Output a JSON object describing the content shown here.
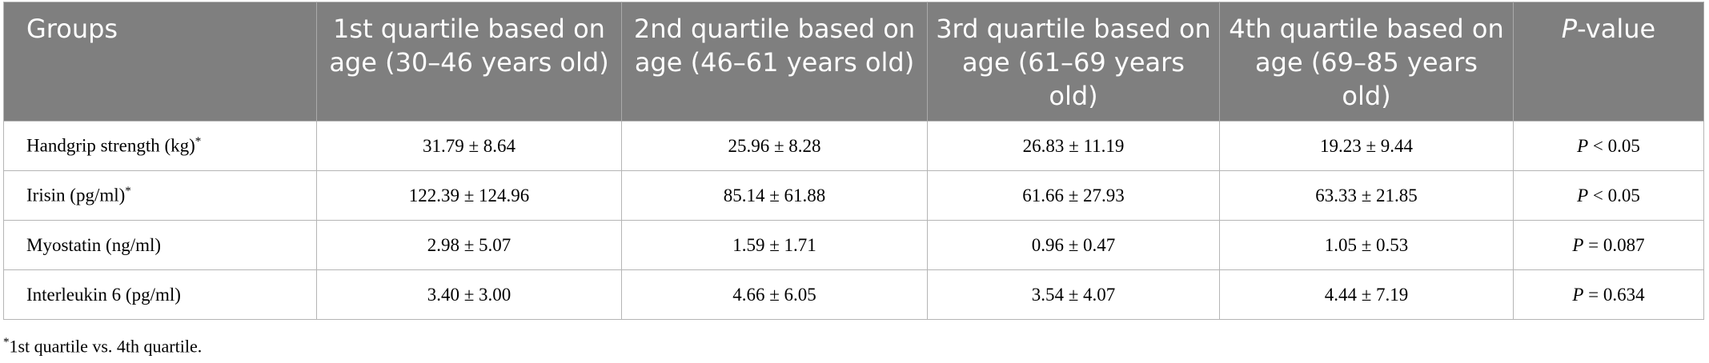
{
  "table": {
    "columns": [
      "Groups",
      "1st quartile based on age (30–46 years old)",
      "2nd quartile based on age (46–61 years old)",
      "3rd quartile based on age (61–69 years old)",
      "4th quartile based on age (69–85 years old)",
      {
        "italic": "P",
        "text": "-value"
      }
    ],
    "rows": [
      [
        {
          "label": "Handgrip strength (kg)",
          "note": "*"
        },
        "31.79 ± 8.64",
        "25.96 ± 8.28",
        "26.83 ± 11.19",
        "19.23 ± 9.44",
        {
          "italic": "P",
          "text": " < 0.05"
        }
      ],
      [
        {
          "label": "Irisin (pg/ml)",
          "note": "*"
        },
        "122.39 ± 124.96",
        "85.14 ± 61.88",
        "61.66 ± 27.93",
        "63.33 ± 21.85",
        {
          "italic": "P",
          "text": " < 0.05"
        }
      ],
      [
        {
          "label": "Myostatin (ng/ml)"
        },
        "2.98 ± 5.07",
        "1.59 ± 1.71",
        "0.96 ± 0.47",
        "1.05 ± 0.53",
        {
          "italic": "P",
          "text": " = 0.087"
        }
      ],
      [
        {
          "label": "Interleukin 6 (pg/ml)"
        },
        "3.40 ± 3.00",
        "4.66 ± 6.05",
        "3.54 ± 4.07",
        "4.44 ± 7.19",
        {
          "italic": "P",
          "text": " = 0.634"
        }
      ]
    ]
  },
  "footnote": {
    "mark": "*",
    "text": "1st quartile vs. 4th quartile."
  }
}
